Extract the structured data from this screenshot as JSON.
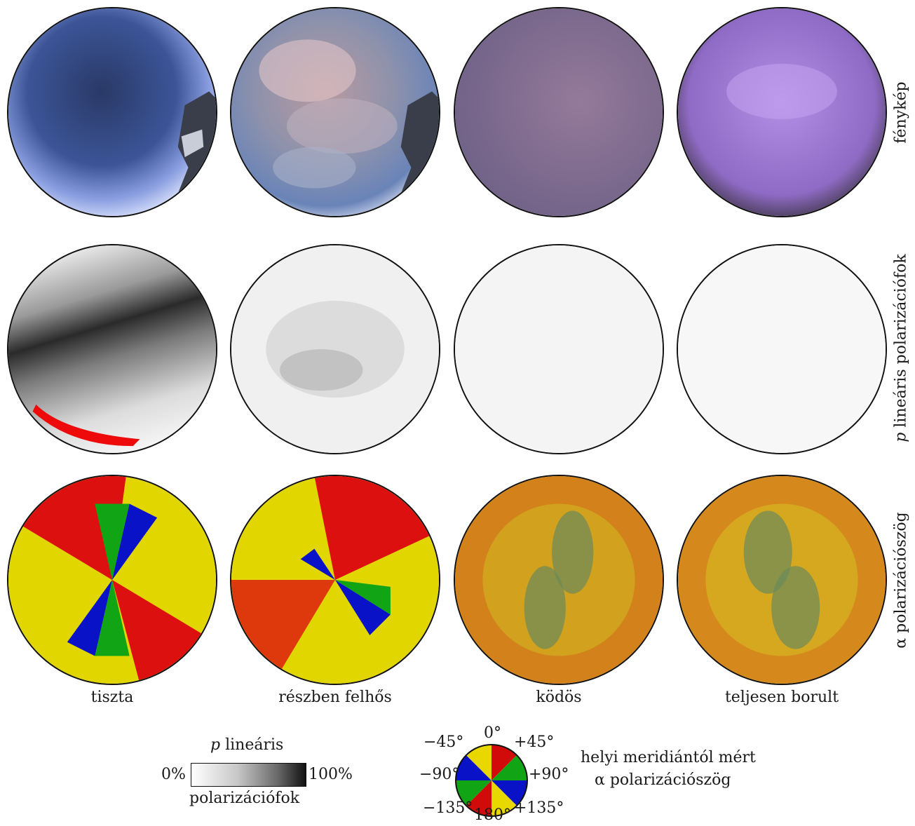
{
  "columns": [
    "tiszta",
    "részben felhős",
    "ködös",
    "teljesen borult"
  ],
  "rows": [
    "fénykép",
    "p lineáris polarizációfok",
    "α polarizációszög"
  ],
  "legend_p": {
    "title_italic": "p",
    "title_rest": " lineáris",
    "min": "0%",
    "max": "100%",
    "subtitle": "polarizációfok"
  },
  "legend_alpha": {
    "ticks": {
      "top": "0°",
      "top_left": "−45°",
      "top_right": "+45°",
      "left": "−90°",
      "right": "+90°",
      "bottom_left": "−135°",
      "bottom": "180°",
      "bottom_right": "+135°"
    },
    "caption_line1": "helyi meridiántól mért",
    "caption_line2": "α polarizációszög",
    "colors": [
      "#e8d800",
      "#d10a0a",
      "#11a516",
      "#0a12c8"
    ]
  }
}
